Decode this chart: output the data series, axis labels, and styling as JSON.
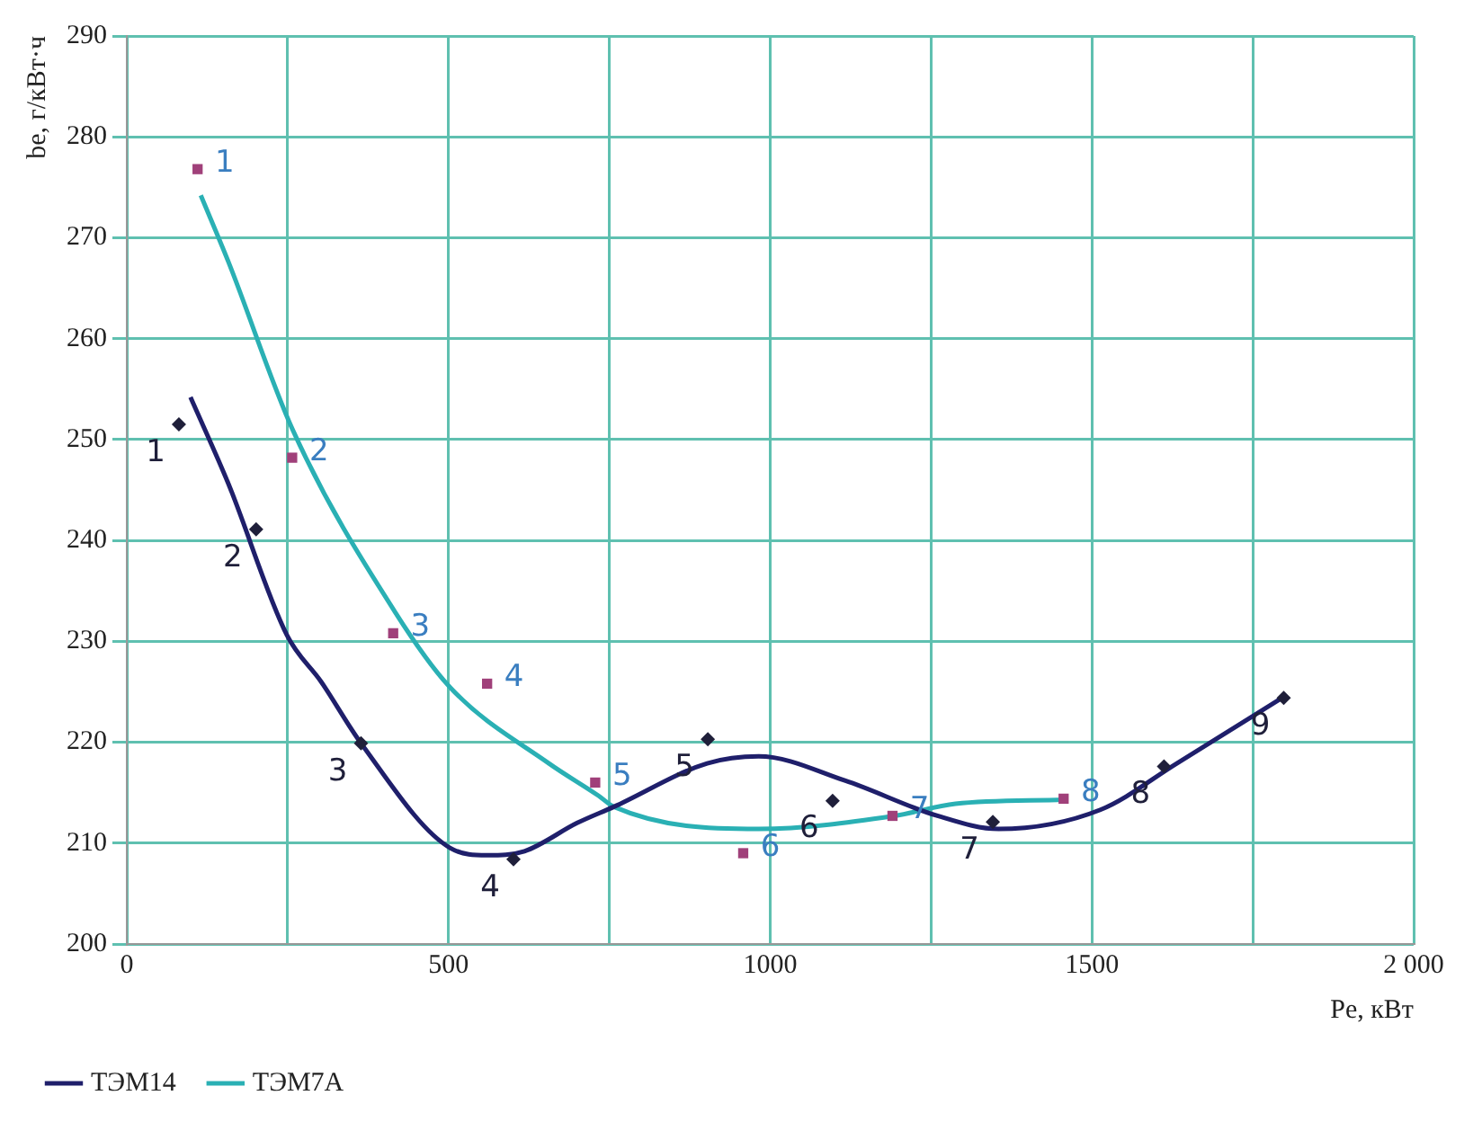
{
  "chart_data": {
    "type": "scatter",
    "xlabel": "Pe, кВт",
    "ylabel": "be, г/кВт·ч",
    "xlim": [
      0,
      2000
    ],
    "xticks": [
      0,
      {
        "value": 250,
        "label": null
      },
      500,
      {
        "value": 750,
        "label": null
      },
      1000,
      {
        "value": 1250,
        "label": null
      },
      1500,
      {
        "value": 1750,
        "label": null
      },
      {
        "value": 2000,
        "label": "2 000"
      }
    ],
    "ylim": [
      200,
      290
    ],
    "yticks": [
      200,
      210,
      220,
      230,
      240,
      250,
      260,
      270,
      280,
      290
    ],
    "grid": true,
    "legend": "bottom left",
    "series": [
      {
        "name": "ТЭМ14",
        "type": "line",
        "color": "#1f1f6b",
        "marker": "none",
        "x": [
          99,
          158,
          249,
          302,
          364,
          503,
          560,
          618,
          700,
          757,
          902,
          982,
          1116,
          1260,
          1355,
          1513,
          1632,
          1798
        ],
        "values": [
          254.2,
          245.6,
          230.6,
          226,
          219.9,
          209.5,
          208.8,
          209.2,
          212,
          213.6,
          217.9,
          218.6,
          216.2,
          212.7,
          211.4,
          213.3,
          217.9,
          224.5
        ]
      },
      {
        "type": "scatter",
        "color": "#1f1f3a",
        "marker": "diamond",
        "x": [
          81,
          201,
          364,
          601,
          903,
          1097,
          1346,
          1612,
          1798
        ],
        "values": [
          251.5,
          241.1,
          219.9,
          208.4,
          220.3,
          214.2,
          212.1,
          217.6,
          224.4
        ]
      },
      {
        "name": "ТЭМ7А",
        "type": "line",
        "color": "#2ab0b4",
        "marker": "none",
        "x": [
          115,
          158,
          259,
          417,
          503,
          656,
          733,
          757,
          982,
          1193,
          1288,
          1456
        ],
        "values": [
          274.2,
          267.6,
          250.8,
          232.9,
          225.4,
          217.9,
          214.7,
          213.6,
          211.4,
          212.7,
          213.9,
          214.3
        ]
      },
      {
        "type": "scatter",
        "color": "#a0407a",
        "marker": "square",
        "x": [
          110,
          257,
          414,
          560,
          728,
          958,
          1190,
          1456
        ],
        "values": [
          276.8,
          248.2,
          230.8,
          225.8,
          216,
          209,
          212.7,
          214.4
        ]
      }
    ],
    "annotations": [
      {
        "text": "1",
        "x": 81,
        "y": 251.5
      },
      {
        "text": "2",
        "x": 201,
        "y": 241.1
      },
      {
        "text": "3",
        "x": 364,
        "y": 219.9
      },
      {
        "text": "4",
        "x": 601,
        "y": 208.4
      },
      {
        "text": "5",
        "x": 903,
        "y": 220.3
      },
      {
        "text": "6",
        "x": 1097,
        "y": 214.2
      },
      {
        "text": "7",
        "x": 1346,
        "y": 212.1
      },
      {
        "text": "8",
        "x": 1612,
        "y": 217.6
      },
      {
        "text": "9",
        "x": 1798,
        "y": 224.4
      },
      {
        "text": "1",
        "x": 110,
        "y": 276.8
      },
      {
        "text": "2",
        "x": 257,
        "y": 248.2
      },
      {
        "text": "3",
        "x": 414,
        "y": 230.8
      },
      {
        "text": "4",
        "x": 560,
        "y": 225.8
      },
      {
        "text": "5",
        "x": 728,
        "y": 216
      },
      {
        "text": "6",
        "x": 958,
        "y": 209
      },
      {
        "text": "7",
        "x": 1190,
        "y": 212.7
      },
      {
        "text": "8",
        "x": 1456,
        "y": 214.4
      }
    ]
  }
}
